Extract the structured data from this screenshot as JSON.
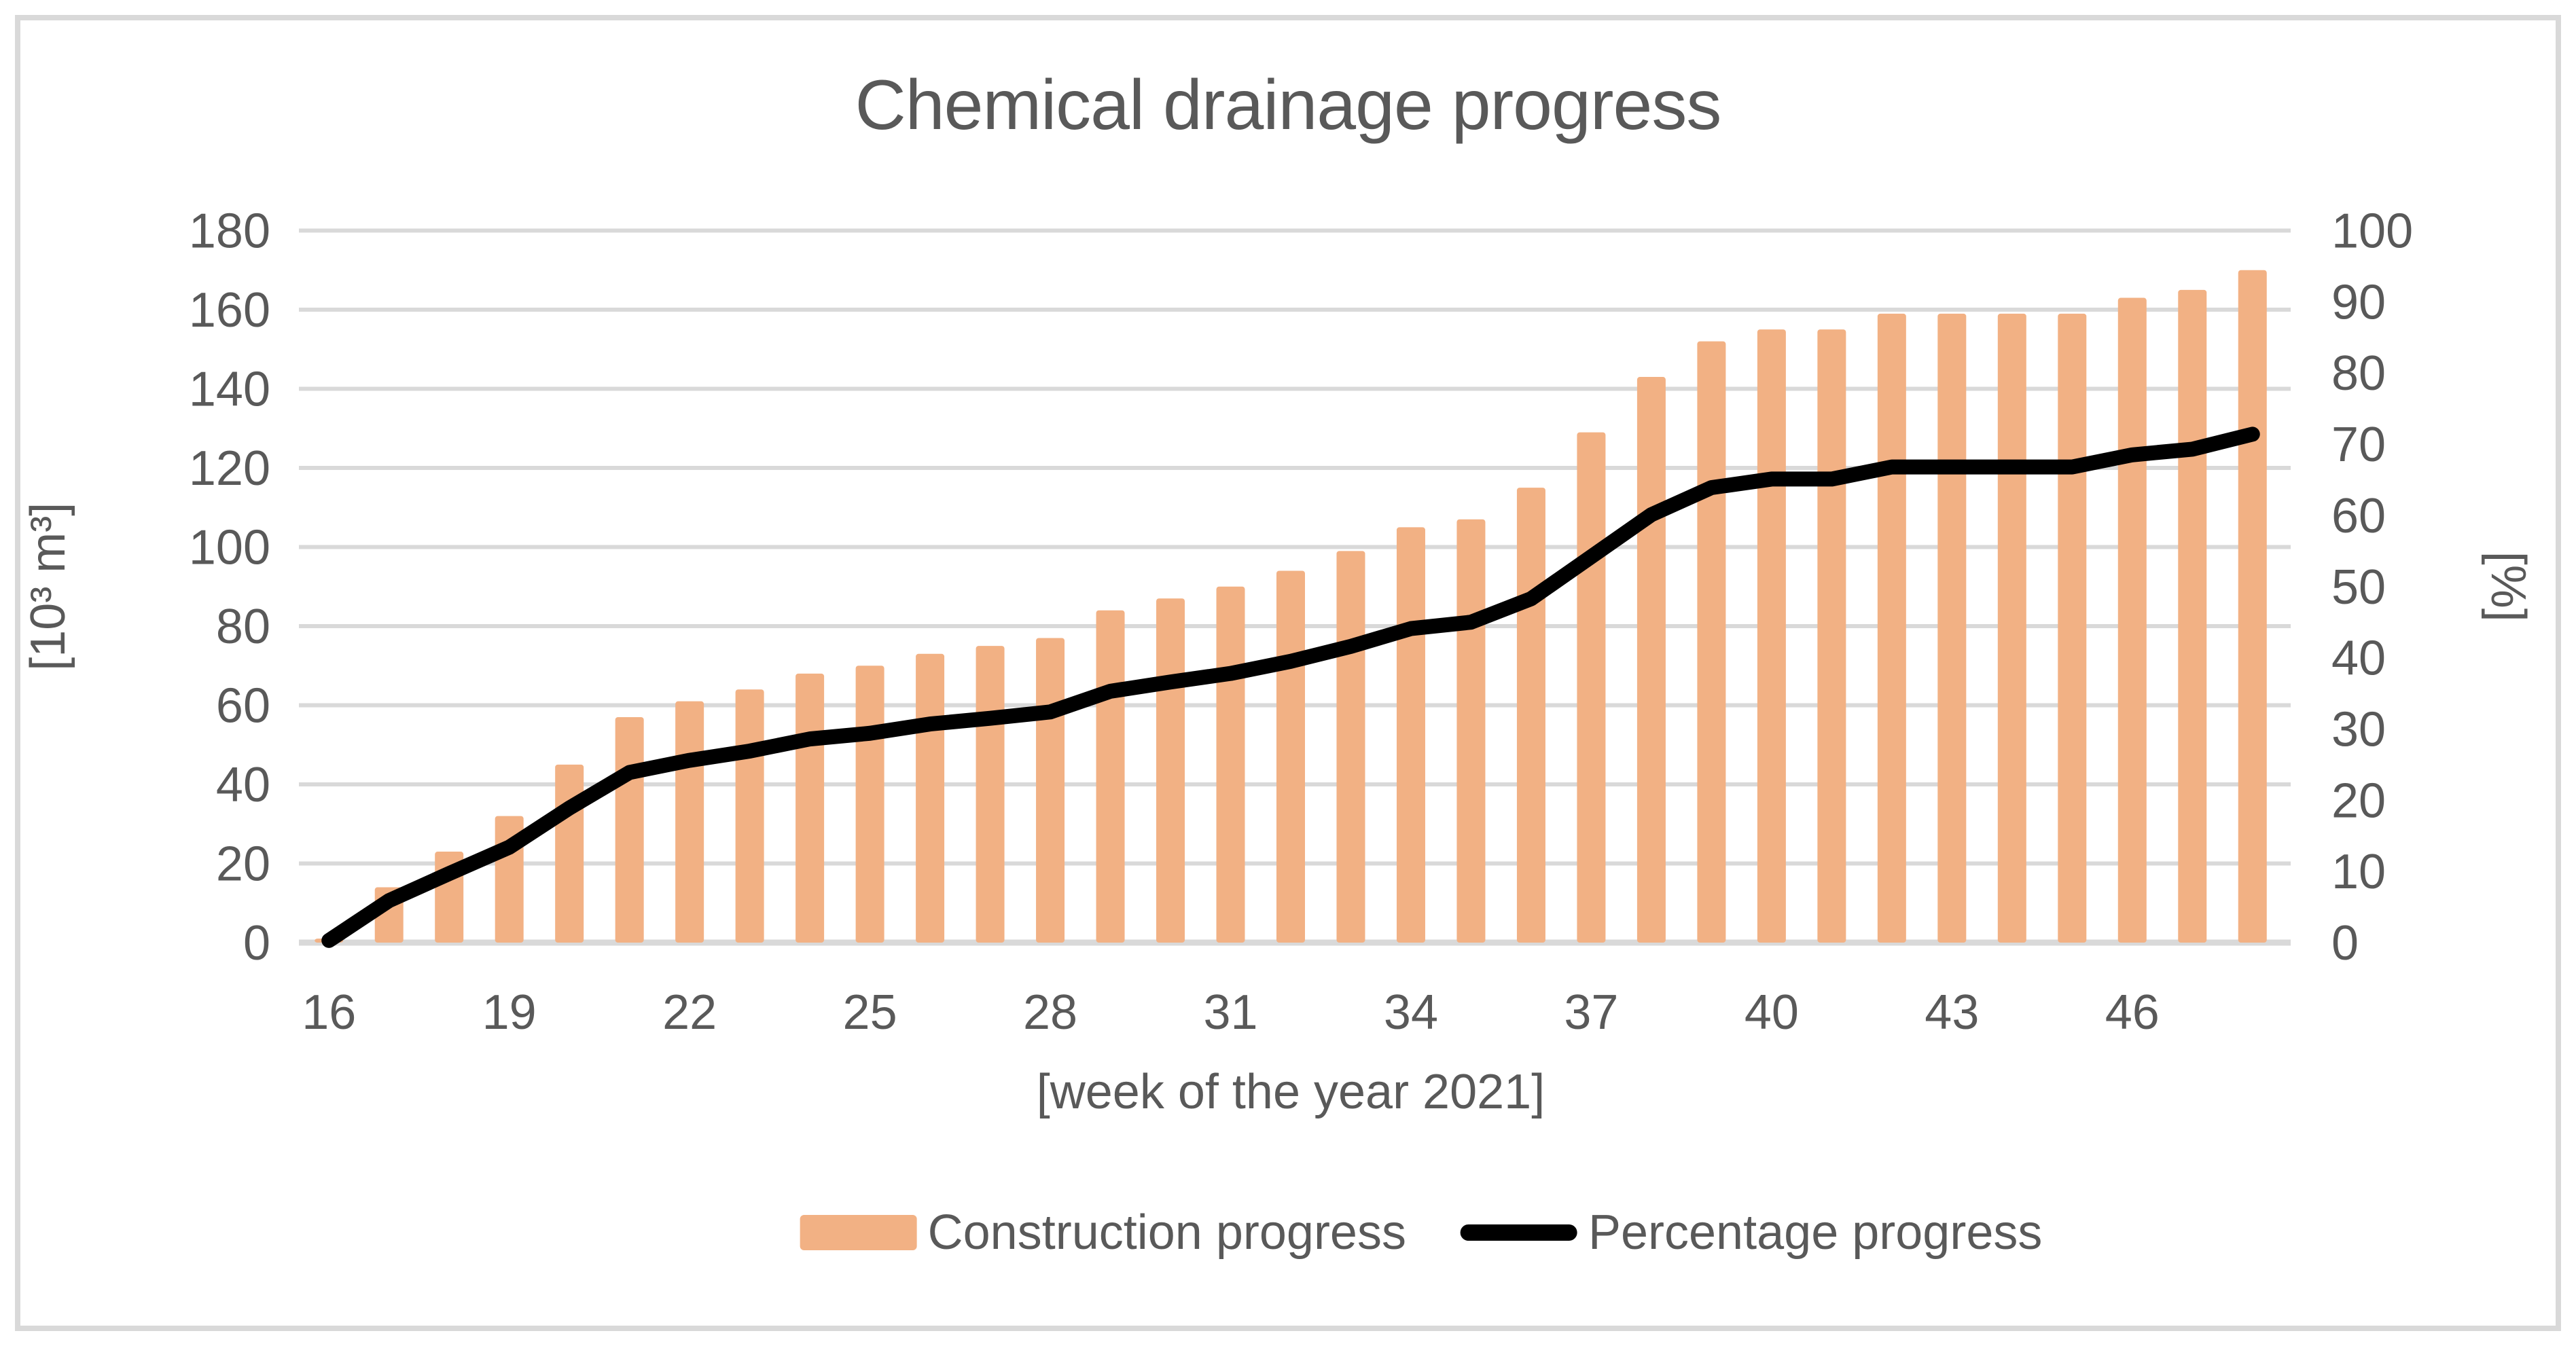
{
  "figure": {
    "title": "Chemical drainage progress",
    "background_color": "#FFFFFF",
    "border_color": "#D9D9D9",
    "text_color": "#595959"
  },
  "chart_data": {
    "type": "bar",
    "subtype": "bar-line-combo",
    "title": "Chemical drainage progress",
    "xlabel": "[week of the year 2021]",
    "categories": [
      16,
      17,
      18,
      19,
      20,
      21,
      22,
      23,
      24,
      25,
      26,
      27,
      28,
      29,
      30,
      31,
      32,
      33,
      34,
      35,
      36,
      37,
      38,
      39,
      40,
      41,
      42,
      43,
      44,
      45,
      46,
      47,
      48
    ],
    "x_tick_labels": [
      "16",
      "19",
      "22",
      "25",
      "28",
      "31",
      "34",
      "37",
      "40",
      "43",
      "46"
    ],
    "series": [
      {
        "name": "Construction progress",
        "type": "bar",
        "axis": "left",
        "color": "#F2B184",
        "values": [
          1,
          14,
          23,
          32,
          45,
          57,
          61,
          64,
          68,
          70,
          73,
          75,
          77,
          84,
          87,
          90,
          94,
          99,
          105,
          107,
          115,
          129,
          143,
          152,
          155,
          155,
          159,
          159,
          159,
          159,
          163,
          165,
          170
        ]
      },
      {
        "name": "Percentage progress",
        "type": "line",
        "axis": "right",
        "color": "#000000",
        "values": [
          0.3,
          5.9,
          9.7,
          13.4,
          18.9,
          23.9,
          25.6,
          26.9,
          28.6,
          29.4,
          30.7,
          31.5,
          32.4,
          35.3,
          36.6,
          37.8,
          39.5,
          41.6,
          44.1,
          45.0,
          48.3,
          54.2,
          60.1,
          63.9,
          65.1,
          65.1,
          66.8,
          66.8,
          66.8,
          66.8,
          68.5,
          69.3,
          71.4
        ]
      }
    ],
    "left_axis": {
      "title": "[10³ m³]",
      "min": 0,
      "max": 180,
      "step": 20,
      "tick_labels": [
        "0",
        "20",
        "40",
        "60",
        "80",
        "100",
        "120",
        "140",
        "160",
        "180"
      ]
    },
    "right_axis": {
      "title": "[%]",
      "min": 0,
      "max": 100,
      "step": 10,
      "tick_labels": [
        "0",
        "10",
        "20",
        "30",
        "40",
        "50",
        "60",
        "70",
        "80",
        "90",
        "100"
      ]
    },
    "x_axis": {
      "title": "[week of the year 2021]"
    },
    "legend": {
      "position": "bottom",
      "entries": [
        "Construction progress",
        "Percentage progress"
      ]
    },
    "grid": {
      "show": true,
      "color": "#D9D9D9"
    }
  }
}
